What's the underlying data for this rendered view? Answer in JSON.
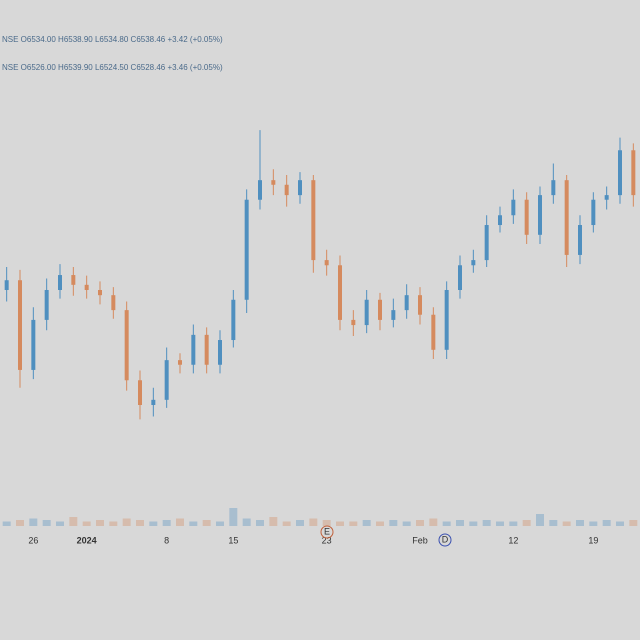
{
  "chart_data": {
    "type": "candlestick",
    "legend_lines": [
      "NSE O6534.00 H6538.90 L6534.80 C6538.46 +3.42 (+0.05%)",
      "NSE O6526.00 H6539.90 L6524.50 C6528.46 +3.46 (+0.05%)"
    ],
    "categories": [
      null,
      null,
      "26",
      null,
      null,
      null,
      "2024",
      null,
      null,
      null,
      null,
      null,
      "8",
      null,
      null,
      null,
      null,
      "15",
      null,
      null,
      null,
      null,
      null,
      null,
      "23",
      null,
      null,
      null,
      null,
      null,
      null,
      "Feb",
      null,
      null,
      null,
      null,
      null,
      null,
      "12",
      null,
      null,
      null,
      null,
      null,
      "19",
      null,
      null,
      null
    ],
    "open": [
      6400,
      6417,
      6261,
      6348,
      6400,
      6426,
      6409,
      6400,
      6391,
      6365,
      6243,
      6200,
      6209,
      6278,
      6270,
      6322,
      6270,
      6313,
      6383,
      6557,
      6591,
      6583,
      6565,
      6591,
      6452,
      6443,
      6348,
      6339,
      6383,
      6348,
      6365,
      6391,
      6357,
      6296,
      6400,
      6443,
      6452,
      6513,
      6530,
      6557,
      6496,
      6565,
      6591,
      6461,
      6513,
      6557,
      6565,
      6643
    ],
    "high": [
      6440,
      6435,
      6370,
      6420,
      6445,
      6440,
      6425,
      6415,
      6405,
      6380,
      6260,
      6230,
      6300,
      6290,
      6340,
      6335,
      6330,
      6400,
      6575,
      6678,
      6610,
      6600,
      6605,
      6600,
      6470,
      6460,
      6365,
      6400,
      6395,
      6385,
      6410,
      6405,
      6370,
      6415,
      6460,
      6470,
      6530,
      6545,
      6575,
      6570,
      6580,
      6620,
      6600,
      6530,
      6570,
      6580,
      6665,
      6655
    ],
    "low": [
      6380,
      6230,
      6245,
      6330,
      6385,
      6390,
      6385,
      6375,
      6350,
      6225,
      6175,
      6180,
      6195,
      6255,
      6255,
      6255,
      6255,
      6300,
      6360,
      6540,
      6565,
      6545,
      6550,
      6430,
      6425,
      6330,
      6320,
      6325,
      6330,
      6335,
      6350,
      6340,
      6280,
      6280,
      6385,
      6430,
      6440,
      6500,
      6515,
      6480,
      6480,
      6550,
      6440,
      6445,
      6500,
      6540,
      6550,
      6545
    ],
    "close": [
      6417,
      6261,
      6348,
      6400,
      6426,
      6409,
      6400,
      6391,
      6365,
      6243,
      6200,
      6209,
      6278,
      6270,
      6322,
      6270,
      6313,
      6383,
      6557,
      6591,
      6583,
      6565,
      6591,
      6452,
      6443,
      6348,
      6339,
      6383,
      6348,
      6365,
      6391,
      6357,
      6296,
      6400,
      6443,
      6452,
      6513,
      6530,
      6557,
      6496,
      6565,
      6591,
      6461,
      6513,
      6557,
      6565,
      6643,
      6565
    ],
    "volume": [
      3,
      4,
      5,
      4,
      3,
      6,
      3,
      4,
      3,
      5,
      4,
      3,
      4,
      5,
      3,
      4,
      3,
      12,
      5,
      4,
      6,
      3,
      4,
      5,
      4,
      3,
      3,
      4,
      3,
      4,
      3,
      4,
      5,
      3,
      4,
      3,
      4,
      3,
      3,
      4,
      8,
      4,
      3,
      4,
      3,
      4,
      3,
      4
    ],
    "volume_max": 40,
    "ylim": [
      6000,
      6800
    ],
    "up_color": "#4f8fbf",
    "down_color": "#d58a5e",
    "annotations": [
      "E",
      "D"
    ]
  }
}
